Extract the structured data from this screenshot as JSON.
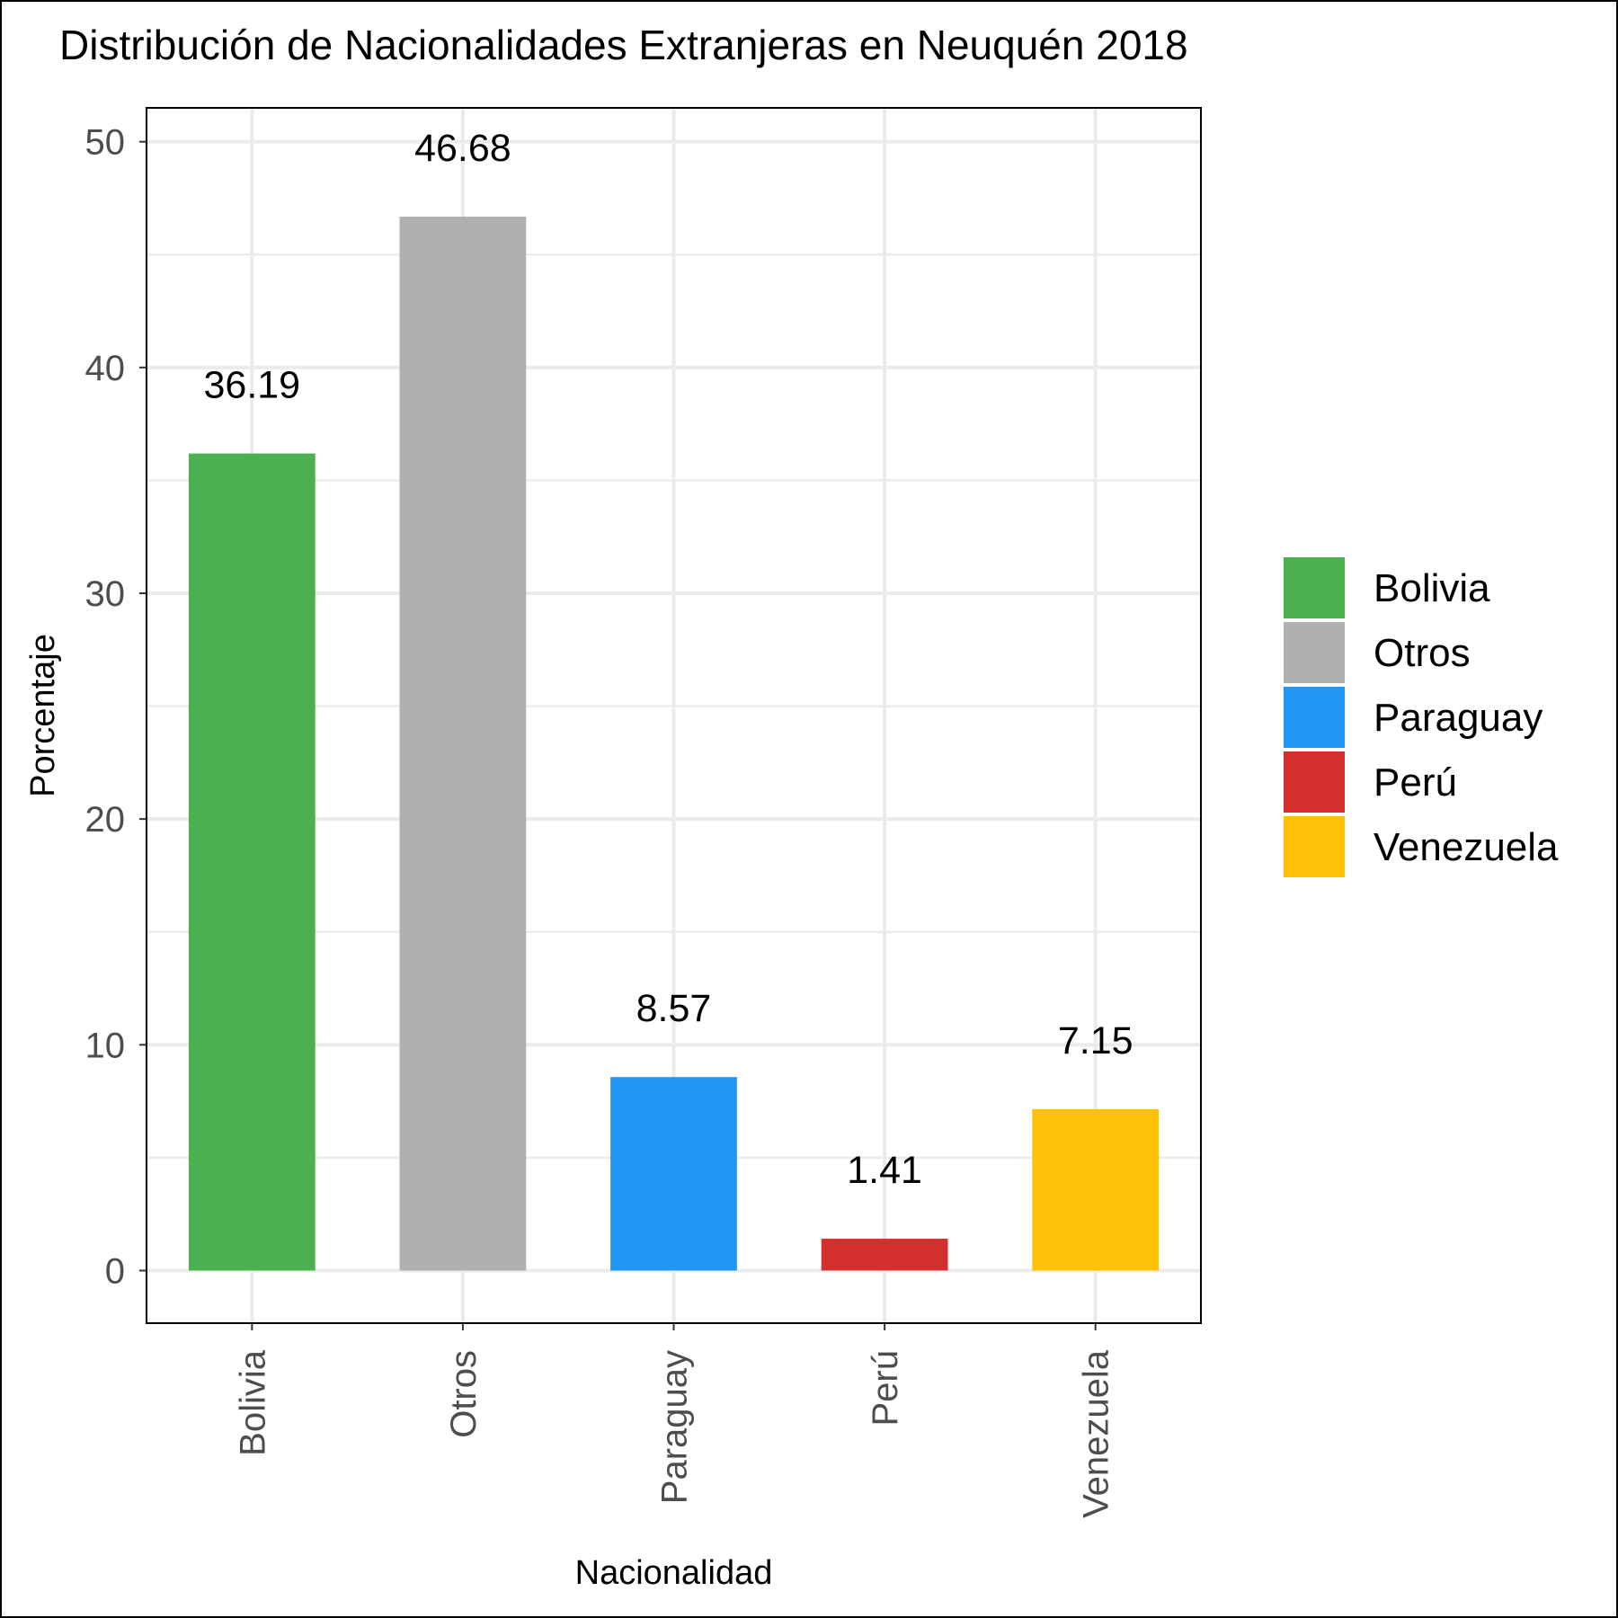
{
  "chart_data": {
    "type": "bar",
    "title": "Distribución de Nacionalidades Extranjeras en Neuquén 2018",
    "xlabel": "Nacionalidad",
    "ylabel": "Porcentaje",
    "categories": [
      "Bolivia",
      "Otros",
      "Paraguay",
      "Perú",
      "Venezuela"
    ],
    "values": [
      36.19,
      46.68,
      8.57,
      1.41,
      7.15
    ],
    "value_labels": [
      "36.19",
      "46.68",
      "8.57",
      "1.41",
      "7.15"
    ],
    "colors": [
      "#4caf50",
      "#b0b0b0",
      "#2196f3",
      "#d32f2f",
      "#ffc107"
    ],
    "ylim": [
      -2.33,
      51.5
    ],
    "yticks": [
      0,
      10,
      20,
      30,
      40,
      50
    ],
    "ytick_labels": [
      "0",
      "10",
      "20",
      "30",
      "40",
      "50"
    ],
    "grid": true,
    "legend": {
      "position": "right",
      "entries": [
        "Bolivia",
        "Otros",
        "Paraguay",
        "Perú",
        "Venezuela"
      ]
    }
  }
}
